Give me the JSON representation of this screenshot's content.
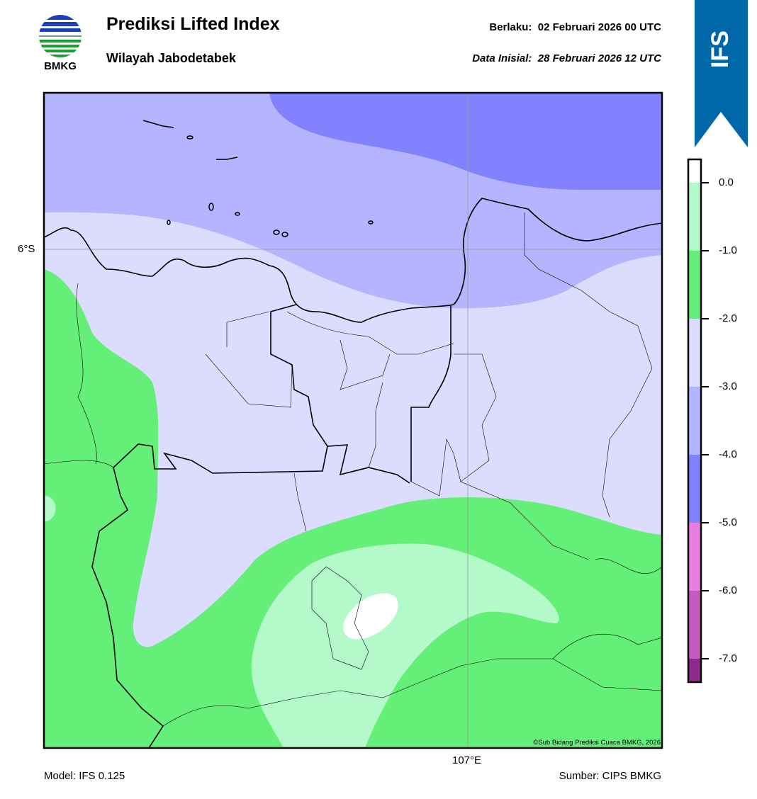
{
  "header": {
    "title": "Prediksi Lifted Index",
    "subtitle": "Wilayah Jabodetabek",
    "valid_label": "Berlaku:",
    "valid_value": "02 Februari 2026 00 UTC",
    "init_label": "Data Inisial:",
    "init_value": "28 Februari 2026 12 UTC"
  },
  "logo": {
    "text": "BMKG"
  },
  "badge": {
    "text": "IFS",
    "color": "#0068a8"
  },
  "map": {
    "lat_label": "6°S",
    "lon_label": "107°E",
    "copyright": "©Sub Bidang Prediksi Cuaca BMKG, 2026",
    "colors": {
      "le_minus4": "#8282ff",
      "minus4_minus3": "#b4b4ff",
      "minus3_minus2": "#dcdcff",
      "minus2_minus1": "#64ef78",
      "minus1_0": "#b3f9c9",
      "gt0": "#ffffff"
    }
  },
  "colorbar": {
    "ticks": [
      "0.0",
      "-1.0",
      "-2.0",
      "-3.0",
      "-4.0",
      "-5.0",
      "-6.0",
      "-7.0"
    ],
    "colors": [
      "#ffffff",
      "#b3f9c9",
      "#64ef78",
      "#dcdcff",
      "#b4b4ff",
      "#8282ff",
      "#e87fe0",
      "#c45cc0",
      "#8e2a8e"
    ]
  },
  "footer": {
    "model": "Model: IFS 0.125",
    "source": "Sumber: CIPS BMKG"
  }
}
